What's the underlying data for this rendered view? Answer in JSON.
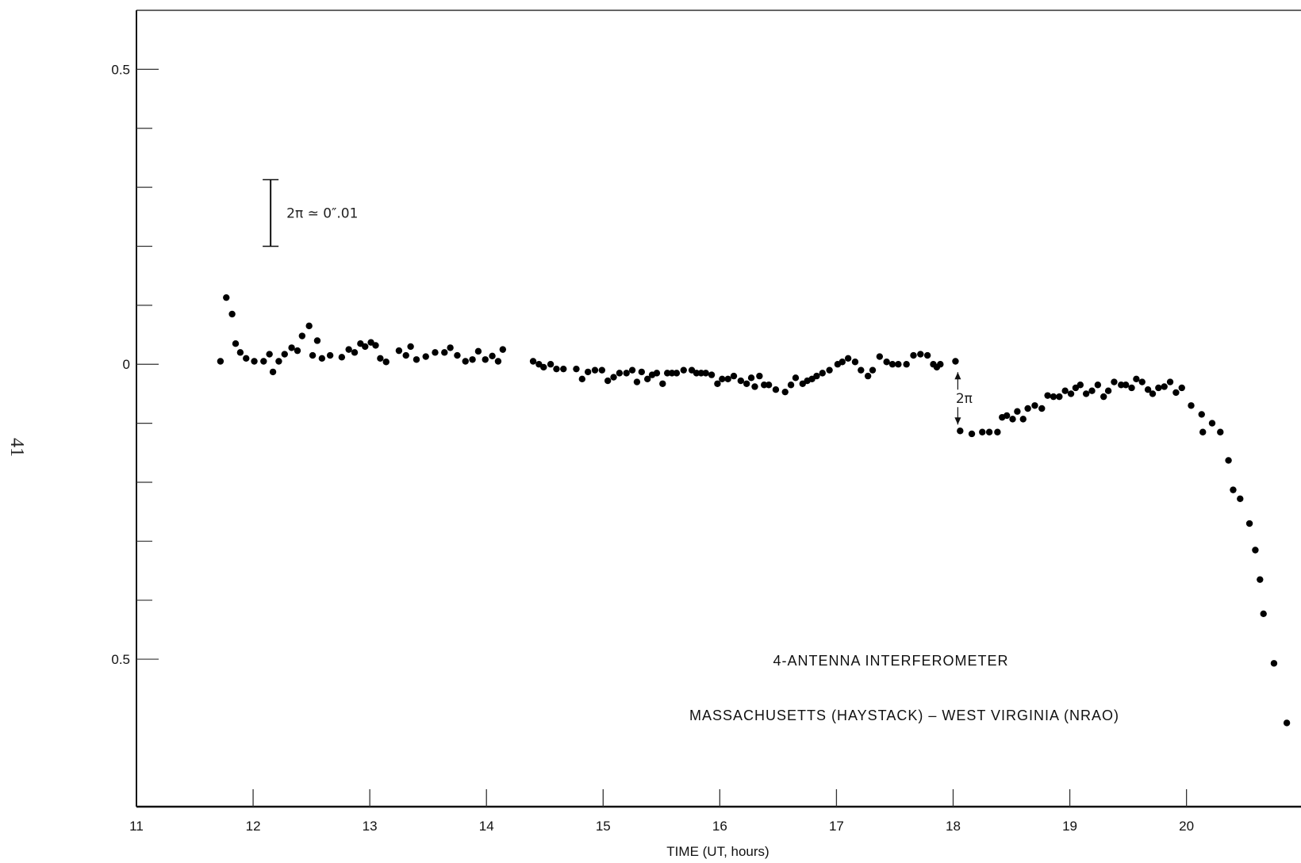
{
  "page_number": "41",
  "chart_data": {
    "type": "scatter",
    "title": "",
    "xlabel": "TIME (UT, hours)",
    "ylabel": "",
    "xlim": [
      11,
      20.9
    ],
    "ylim": [
      -0.75,
      0.6
    ],
    "x_ticks": [
      11,
      12,
      13,
      14,
      15,
      16,
      17,
      18,
      19,
      20
    ],
    "x_tick_labels": [
      "11",
      "12",
      "13",
      "14",
      "15",
      "16",
      "17",
      "18",
      "19",
      "20"
    ],
    "y_tick_labels": [
      {
        "value": 0.5,
        "label": "0.5"
      },
      {
        "value": 0,
        "label": "0"
      },
      {
        "value": -0.5,
        "label": "0.5"
      }
    ],
    "y_minor_ticks": [
      0.4,
      0.3,
      0.2,
      0.1,
      -0.1,
      -0.2,
      -0.3,
      -0.4
    ],
    "annotations": {
      "scale_bar_label": "2π ≃ 0″.01",
      "scale_bar_range": [
        0.2,
        0.313
      ],
      "scale_bar_x": 12.15,
      "phase_jump_label": "2π",
      "phase_jump_x": 18.04,
      "phase_jump_range": [
        0,
        -0.113
      ],
      "note_line1": "4-ANTENNA INTERFEROMETER",
      "note_line2": "MASSACHUSETTS (HAYSTACK) – WEST VIRGINIA (NRAO)"
    },
    "series": [
      {
        "x": [
          11.72,
          11.77,
          11.82,
          11.85,
          11.89,
          11.94,
          12.01,
          12.09,
          12.14,
          12.17,
          12.22,
          12.27,
          12.33,
          12.38,
          12.42,
          12.48,
          12.51,
          12.55,
          12.59,
          12.66,
          12.76,
          12.82,
          12.87,
          12.92,
          12.96,
          13.01,
          13.05,
          13.09,
          13.14,
          13.25,
          13.31,
          13.35,
          13.4,
          13.48,
          13.56,
          13.64,
          13.69,
          13.75,
          13.82,
          13.88,
          13.93,
          13.99,
          14.05,
          14.1,
          14.14
        ],
        "y": [
          0.005,
          0.113,
          0.085,
          0.035,
          0.02,
          0.01,
          0.005,
          0.005,
          0.017,
          -0.013,
          0.005,
          0.017,
          0.028,
          0.023,
          0.048,
          0.065,
          0.015,
          0.04,
          0.01,
          0.015,
          0.012,
          0.025,
          0.02,
          0.035,
          0.03,
          0.037,
          0.032,
          0.01,
          0.004,
          0.023,
          0.015,
          0.03,
          0.008,
          0.013,
          0.02,
          0.02,
          0.028,
          0.015,
          0.005,
          0.008,
          0.022,
          0.008,
          0.014,
          0.005,
          0.025
        ]
      },
      {
        "x": [
          14.4,
          14.45,
          14.49,
          14.55,
          14.6,
          14.66,
          14.77,
          14.82,
          14.87,
          14.93,
          14.99,
          15.04,
          15.09,
          15.14,
          15.2,
          15.25,
          15.29,
          15.33,
          15.38,
          15.42,
          15.46,
          15.51,
          15.55,
          15.59,
          15.63,
          15.69,
          15.76,
          15.8,
          15.84,
          15.88,
          15.93,
          15.98,
          16.02,
          16.07,
          16.12,
          16.18,
          16.23,
          16.27,
          16.3,
          16.34,
          16.38,
          16.42,
          16.48,
          16.56,
          16.61,
          16.65,
          16.71,
          16.75,
          16.79,
          16.83,
          16.88,
          16.94,
          17.01,
          17.05,
          17.1,
          17.16,
          17.21,
          17.27,
          17.31,
          17.37,
          17.43,
          17.48,
          17.53,
          17.6,
          17.66,
          17.72,
          17.78,
          17.83,
          17.86,
          17.89
        ],
        "y": [
          0.005,
          0.0,
          -0.005,
          0.0,
          -0.008,
          -0.008,
          -0.008,
          -0.025,
          -0.013,
          -0.01,
          -0.01,
          -0.028,
          -0.022,
          -0.015,
          -0.015,
          -0.01,
          -0.03,
          -0.013,
          -0.025,
          -0.018,
          -0.015,
          -0.033,
          -0.015,
          -0.015,
          -0.015,
          -0.01,
          -0.01,
          -0.015,
          -0.015,
          -0.015,
          -0.018,
          -0.033,
          -0.025,
          -0.025,
          -0.02,
          -0.028,
          -0.033,
          -0.023,
          -0.038,
          -0.02,
          -0.035,
          -0.035,
          -0.043,
          -0.047,
          -0.035,
          -0.023,
          -0.033,
          -0.028,
          -0.025,
          -0.02,
          -0.015,
          -0.01,
          0.0,
          0.004,
          0.01,
          0.004,
          -0.01,
          -0.02,
          -0.01,
          0.013,
          0.004,
          0.0,
          0.0,
          0.0,
          0.015,
          0.017,
          0.015,
          0.0,
          -0.005,
          0.0
        ]
      },
      {
        "x": [
          18.02,
          18.06,
          18.16,
          18.25,
          18.31,
          18.38,
          18.42,
          18.46,
          18.51,
          18.55,
          18.6,
          18.64,
          18.7,
          18.76,
          18.81,
          18.86,
          18.91,
          18.96,
          19.01,
          19.05,
          19.09,
          19.14,
          19.19,
          19.24,
          19.29,
          19.33,
          19.38,
          19.44,
          19.48,
          19.53,
          19.57,
          19.62,
          19.67,
          19.71,
          19.76,
          19.81,
          19.86,
          19.91,
          19.96,
          20.04,
          20.13,
          20.14,
          20.22,
          20.29,
          20.36,
          20.4,
          20.46,
          20.54,
          20.59,
          20.63,
          20.66,
          20.75,
          20.86
        ],
        "y": [
          0.005,
          -0.113,
          -0.118,
          -0.115,
          -0.115,
          -0.115,
          -0.09,
          -0.087,
          -0.093,
          -0.08,
          -0.093,
          -0.075,
          -0.07,
          -0.075,
          -0.053,
          -0.055,
          -0.055,
          -0.045,
          -0.05,
          -0.04,
          -0.035,
          -0.05,
          -0.045,
          -0.035,
          -0.055,
          -0.045,
          -0.03,
          -0.035,
          -0.035,
          -0.04,
          -0.025,
          -0.03,
          -0.043,
          -0.05,
          -0.04,
          -0.038,
          -0.03,
          -0.048,
          -0.04,
          -0.07,
          -0.085,
          -0.115,
          -0.1,
          -0.115,
          -0.163,
          -0.213,
          -0.228,
          -0.27,
          -0.315,
          -0.365,
          -0.423,
          -0.507,
          -0.608
        ]
      }
    ]
  }
}
